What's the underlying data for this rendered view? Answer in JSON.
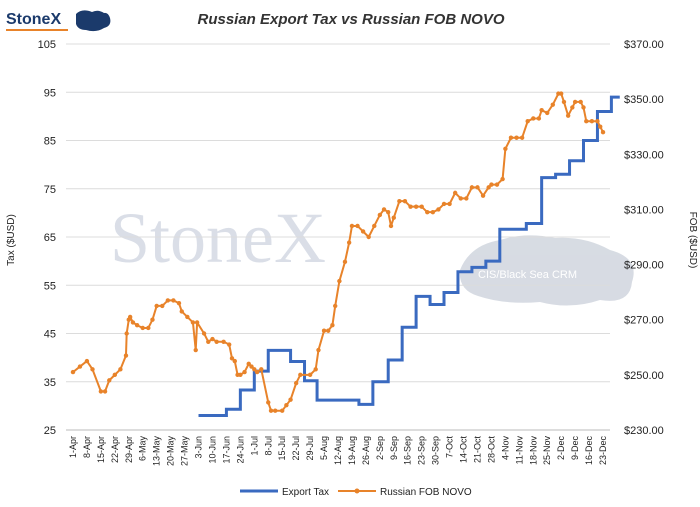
{
  "logo": {
    "text": "StoneX"
  },
  "watermark": {
    "text": "StoneX",
    "subtext": "CIS/Black Sea CRM"
  },
  "colors": {
    "export_tax": "#3a6ac0",
    "fob_novo": "#e8832a",
    "grid": "#dcdcdc",
    "logo_blue": "#1b3a6b"
  },
  "chart_data": {
    "type": "line",
    "title": "Russian Export Tax vs Russian FOB NOVO",
    "ylabel": "Tax ($USD)",
    "y2label": "FOB ($USD)",
    "ylim": [
      25,
      105
    ],
    "yticks": [
      "105",
      "95",
      "85",
      "75",
      "65",
      "55",
      "45",
      "35",
      "25"
    ],
    "y2lim": [
      230,
      370
    ],
    "y2ticks": [
      "$370.00",
      "$350.00",
      "$330.00",
      "$310.00",
      "$290.00",
      "$270.00",
      "$250.00",
      "$230.00"
    ],
    "grid": true,
    "legend_position": "bottom",
    "categories": [
      "1-Apr",
      "8-Apr",
      "15-Apr",
      "22-Apr",
      "29-Apr",
      "6-May",
      "13-May",
      "20-May",
      "27-May",
      "3-Jun",
      "10-Jun",
      "17-Jun",
      "24-Jun",
      "1-Jul",
      "8-Jul",
      "15-Jul",
      "22-Jul",
      "29-Jul",
      "5-Aug",
      "12-Aug",
      "19-Aug",
      "26-Aug",
      "2-Sep",
      "9-Sep",
      "16-Sep",
      "23-Sep",
      "30-Sep",
      "7-Oct",
      "14-Oct",
      "21-Oct",
      "28-Oct",
      "4-Nov",
      "11-Nov",
      "18-Nov",
      "25-Nov",
      "2-Dec",
      "9-Dec",
      "16-Dec",
      "23-Dec"
    ],
    "series": [
      {
        "name": "Export Tax",
        "axis": "left",
        "step": true,
        "points": [
          [
            9,
            28
          ],
          [
            11,
            29.3
          ],
          [
            12,
            33.3
          ],
          [
            13,
            37.2
          ],
          [
            14,
            41.5
          ],
          [
            15.6,
            39.2
          ],
          [
            16.6,
            35.2
          ],
          [
            17.5,
            31.2
          ],
          [
            20.5,
            30.3
          ],
          [
            21.5,
            35
          ],
          [
            22.6,
            39.5
          ],
          [
            23.6,
            46.3
          ],
          [
            24.6,
            52.7
          ],
          [
            25.6,
            51
          ],
          [
            26.6,
            53.5
          ],
          [
            27.6,
            57.8
          ],
          [
            28.6,
            58.7
          ],
          [
            29.6,
            60
          ],
          [
            30.6,
            66.6
          ],
          [
            32.5,
            67.8
          ],
          [
            33.6,
            77.3
          ],
          [
            34.6,
            78
          ],
          [
            35.6,
            80.8
          ],
          [
            36.6,
            85
          ],
          [
            37.6,
            91
          ],
          [
            38.6,
            94
          ],
          [
            39.2,
            94
          ]
        ]
      },
      {
        "name": "Russian FOB NOVO",
        "axis": "right",
        "values": [
          [
            0,
            251
          ],
          [
            0.5,
            253
          ],
          [
            1,
            255
          ],
          [
            1.4,
            252
          ],
          [
            2,
            244
          ],
          [
            2.3,
            244
          ],
          [
            2.6,
            248
          ],
          [
            3,
            250
          ],
          [
            3.4,
            252
          ],
          [
            3.8,
            257
          ],
          [
            3.85,
            265
          ],
          [
            4,
            270
          ],
          [
            4.1,
            271
          ],
          [
            4.3,
            269
          ],
          [
            4.6,
            268
          ],
          [
            5,
            267
          ],
          [
            5.4,
            267
          ],
          [
            5.7,
            270
          ],
          [
            6,
            275
          ],
          [
            6.4,
            275
          ],
          [
            6.8,
            277
          ],
          [
            7.2,
            277
          ],
          [
            7.6,
            276
          ],
          [
            7.8,
            273
          ],
          [
            8.2,
            271
          ],
          [
            8.6,
            269
          ],
          [
            8.8,
            259
          ],
          [
            8.9,
            269
          ],
          [
            9.4,
            265
          ],
          [
            9.7,
            262
          ],
          [
            10,
            263
          ],
          [
            10.3,
            262
          ],
          [
            10.8,
            262
          ],
          [
            11.2,
            261
          ],
          [
            11.4,
            256
          ],
          [
            11.6,
            255
          ],
          [
            11.8,
            250
          ],
          [
            12,
            250
          ],
          [
            12.3,
            251
          ],
          [
            12.6,
            254
          ],
          [
            12.8,
            253
          ],
          [
            13,
            252
          ],
          [
            13.2,
            251
          ],
          [
            13.5,
            252
          ],
          [
            14,
            240
          ],
          [
            14.2,
            237
          ],
          [
            14.5,
            237
          ],
          [
            15,
            237
          ],
          [
            15.3,
            239
          ],
          [
            15.6,
            241
          ],
          [
            16,
            247
          ],
          [
            16.3,
            250
          ],
          [
            17,
            250
          ],
          [
            17.4,
            252
          ],
          [
            17.6,
            259
          ],
          [
            18,
            266
          ],
          [
            18.3,
            266
          ],
          [
            18.6,
            268
          ],
          [
            18.8,
            275
          ],
          [
            19.1,
            284
          ],
          [
            19.5,
            291
          ],
          [
            19.8,
            298
          ],
          [
            20,
            304
          ],
          [
            20.4,
            304
          ],
          [
            20.8,
            302
          ],
          [
            21.2,
            300
          ],
          [
            21.6,
            304
          ],
          [
            22,
            308
          ],
          [
            22.3,
            310
          ],
          [
            22.6,
            309
          ],
          [
            22.8,
            304
          ],
          [
            23,
            307
          ],
          [
            23.4,
            313
          ],
          [
            23.8,
            313
          ],
          [
            24.2,
            311
          ],
          [
            24.6,
            311
          ],
          [
            25,
            311
          ],
          [
            25.4,
            309
          ],
          [
            25.8,
            309
          ],
          [
            26.2,
            310
          ],
          [
            26.6,
            312
          ],
          [
            27,
            312
          ],
          [
            27.4,
            316
          ],
          [
            27.8,
            314
          ],
          [
            28.2,
            314
          ],
          [
            28.6,
            318
          ],
          [
            29,
            318
          ],
          [
            29.4,
            315
          ],
          [
            29.8,
            318
          ],
          [
            30,
            319
          ],
          [
            30.4,
            319
          ],
          [
            30.8,
            321
          ],
          [
            31,
            332
          ],
          [
            31.4,
            336
          ],
          [
            31.8,
            336
          ],
          [
            32.2,
            336
          ],
          [
            32.6,
            342
          ],
          [
            33,
            343
          ],
          [
            33.4,
            343
          ],
          [
            33.6,
            346
          ],
          [
            34,
            345
          ],
          [
            34.4,
            348
          ],
          [
            34.8,
            352
          ],
          [
            35,
            352
          ],
          [
            35.2,
            349
          ],
          [
            35.5,
            344
          ],
          [
            35.8,
            347
          ],
          [
            36,
            349
          ],
          [
            36.4,
            349
          ],
          [
            36.6,
            347
          ],
          [
            36.8,
            342
          ],
          [
            37.2,
            342
          ],
          [
            37.6,
            342
          ],
          [
            37.8,
            340
          ],
          [
            38,
            338
          ]
        ]
      }
    ]
  }
}
